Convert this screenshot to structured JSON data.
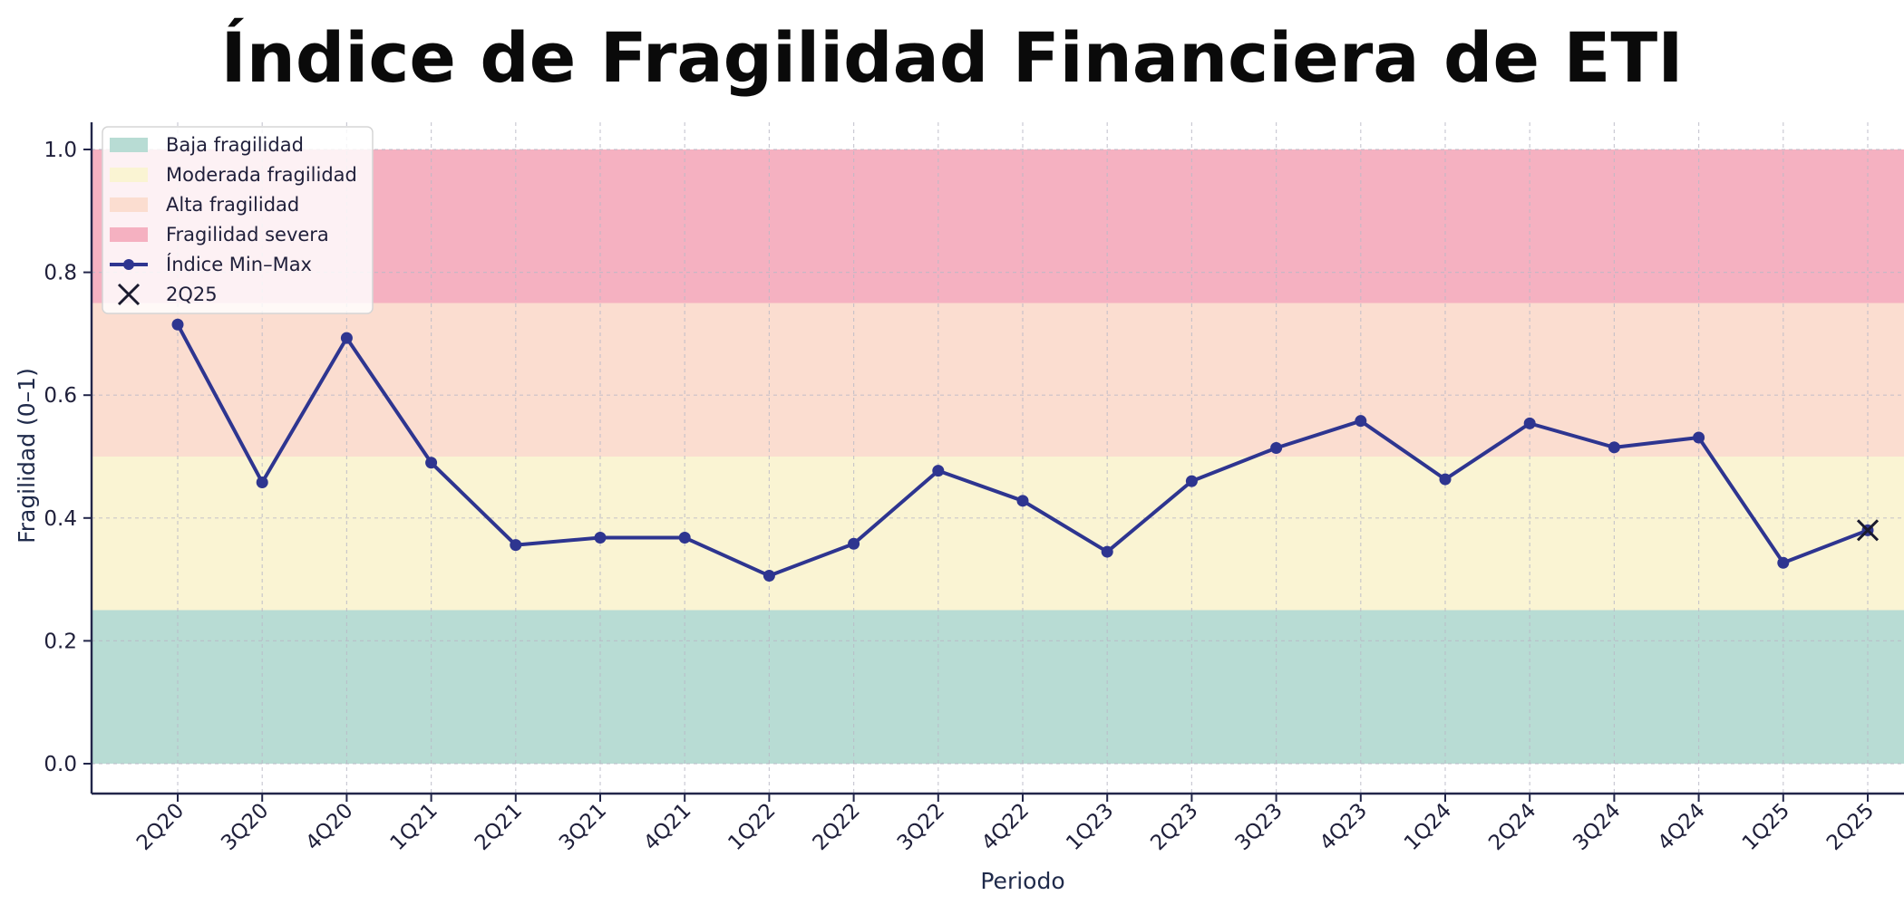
{
  "chart_data": {
    "type": "line",
    "title": "Índice de Fragilidad Financiera de ETI",
    "xlabel": "Periodo",
    "ylabel": "Fragilidad (0–1)",
    "ylim": [
      -0.05,
      1.05
    ],
    "yticks": [
      "0.0",
      "0.2",
      "0.4",
      "0.6",
      "0.8",
      "1.0"
    ],
    "ytick_values": [
      0.0,
      0.2,
      0.4,
      0.6,
      0.8,
      1.0
    ],
    "grid": true,
    "legend_position": "top-left",
    "categories": [
      "2Q20",
      "3Q20",
      "4Q20",
      "1Q21",
      "2Q21",
      "3Q21",
      "4Q21",
      "1Q22",
      "2Q22",
      "3Q22",
      "4Q22",
      "1Q23",
      "2Q23",
      "3Q23",
      "4Q23",
      "1Q24",
      "2Q24",
      "3Q24",
      "4Q24",
      "1Q25",
      "2Q25"
    ],
    "bands": [
      {
        "name": "Baja fragilidad",
        "from": 0.0,
        "to": 0.25,
        "color": "#b8dcd4"
      },
      {
        "name": "Moderada fragilidad",
        "from": 0.25,
        "to": 0.5,
        "color": "#faf4d3"
      },
      {
        "name": "Alta fragilidad",
        "from": 0.5,
        "to": 0.75,
        "color": "#fbddd0"
      },
      {
        "name": "Fragilidad severa",
        "from": 0.75,
        "to": 1.0,
        "color": "#f5b1c1"
      }
    ],
    "series": [
      {
        "name": "Índice Min–Max",
        "color": "#2e3590",
        "values": [
          0.715,
          0.458,
          0.693,
          0.49,
          0.356,
          0.368,
          0.368,
          0.306,
          0.358,
          0.477,
          0.428,
          0.345,
          0.46,
          0.514,
          0.558,
          0.463,
          0.554,
          0.515,
          0.531,
          0.327,
          0.38
        ]
      }
    ],
    "highlight": {
      "name": "2Q25",
      "category": "2Q25",
      "value": 0.38,
      "color": "#1a1a2e"
    }
  }
}
